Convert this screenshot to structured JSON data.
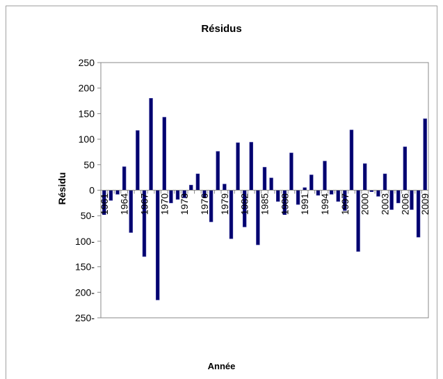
{
  "chart_data": {
    "type": "bar",
    "title": "Résidus",
    "xlabel": "Année",
    "ylabel": "Résidu",
    "ylim": [
      -250,
      250
    ],
    "y_ticks": [
      {
        "value": 250,
        "label": "250"
      },
      {
        "value": 200,
        "label": "200"
      },
      {
        "value": 150,
        "label": "150"
      },
      {
        "value": 100,
        "label": "100"
      },
      {
        "value": 50,
        "label": "50"
      },
      {
        "value": 0,
        "label": "0"
      },
      {
        "value": -50,
        "label": "50-"
      },
      {
        "value": -100,
        "label": "100-"
      },
      {
        "value": -150,
        "label": "150-"
      },
      {
        "value": -200,
        "label": "200-"
      },
      {
        "value": -250,
        "label": "250-"
      }
    ],
    "x_tick_labels": [
      {
        "year": 1961,
        "label": "1961"
      },
      {
        "year": 1964,
        "label": "1964"
      },
      {
        "year": 1967,
        "label": "1967"
      },
      {
        "year": 1970,
        "label": "1970"
      },
      {
        "year": 1973,
        "label": "1973"
      },
      {
        "year": 1976,
        "label": "1976"
      },
      {
        "year": 1979,
        "label": "1979"
      },
      {
        "year": 1982,
        "label": "1982"
      },
      {
        "year": 1985,
        "label": "1985"
      },
      {
        "year": 1988,
        "label": "1988"
      },
      {
        "year": 1991,
        "label": "1991"
      },
      {
        "year": 1994,
        "label": "1994"
      },
      {
        "year": 1997,
        "label": "1997"
      },
      {
        "year": 2000,
        "label": "2000"
      },
      {
        "year": 2003,
        "label": "2003"
      },
      {
        "year": 2006,
        "label": "2006"
      },
      {
        "year": 2009,
        "label": "2009"
      }
    ],
    "categories": [
      1961,
      1962,
      1963,
      1964,
      1965,
      1966,
      1967,
      1968,
      1969,
      1970,
      1971,
      1972,
      1973,
      1974,
      1975,
      1976,
      1977,
      1978,
      1979,
      1980,
      1981,
      1982,
      1983,
      1984,
      1985,
      1986,
      1987,
      1988,
      1989,
      1990,
      1991,
      1992,
      1993,
      1994,
      1995,
      1996,
      1997,
      1998,
      1999,
      2000,
      2001,
      2002,
      2003,
      2004,
      2005,
      2006,
      2007,
      2008,
      2009
    ],
    "values": [
      -48,
      -20,
      -8,
      46,
      -83,
      117,
      -130,
      180,
      -215,
      143,
      -25,
      -18,
      -15,
      10,
      32,
      -15,
      -62,
      76,
      12,
      -95,
      93,
      -72,
      94,
      -107,
      45,
      24,
      -22,
      -48,
      73,
      -28,
      5,
      30,
      -10,
      57,
      -8,
      -22,
      -40,
      118,
      -120,
      52,
      -3,
      -12,
      32,
      -38,
      -25,
      85,
      -38,
      -92,
      140
    ],
    "bar_color": "#00006e",
    "bar_edge_color": "#3b3b9e",
    "grid": false,
    "legend": "none"
  }
}
